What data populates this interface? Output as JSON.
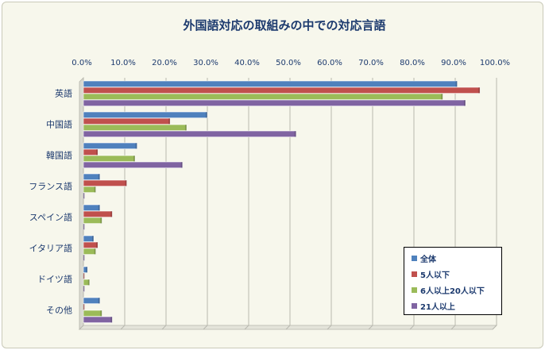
{
  "chart_data": {
    "type": "bar",
    "orientation": "horizontal",
    "title": "外国語対応の取組みの中での対応言語",
    "categories": [
      "英語",
      "中国語",
      "韓国語",
      "フランス語",
      "スペイン語",
      "イタリア語",
      "ドイツ語",
      "その他"
    ],
    "xlim": [
      0,
      100
    ],
    "x_ticks": [
      "0.0%",
      "10.0%",
      "20.0%",
      "30.0%",
      "40.0%",
      "50.0%",
      "60.0%",
      "70.0%",
      "80.0%",
      "90.0%",
      "100.0%"
    ],
    "grid": true,
    "legend_position": "bottom-right",
    "series": [
      {
        "name": "全体",
        "color": "#4f81bd",
        "values": [
          90.5,
          30.0,
          13.0,
          4.0,
          4.0,
          2.5,
          1.0,
          4.0
        ]
      },
      {
        "name": "5人以下",
        "color": "#c0504d",
        "values": [
          96.0,
          21.0,
          3.5,
          10.5,
          7.0,
          3.5,
          0.0,
          0.0
        ]
      },
      {
        "name": "6人以上20人以下",
        "color": "#9bbb59",
        "values": [
          87.0,
          25.0,
          12.5,
          3.0,
          4.5,
          3.0,
          1.5,
          4.5
        ]
      },
      {
        "name": "21人以上",
        "color": "#8064a2",
        "values": [
          92.5,
          51.5,
          24.0,
          0.0,
          0.0,
          0.0,
          0.0,
          7.0
        ]
      }
    ]
  }
}
